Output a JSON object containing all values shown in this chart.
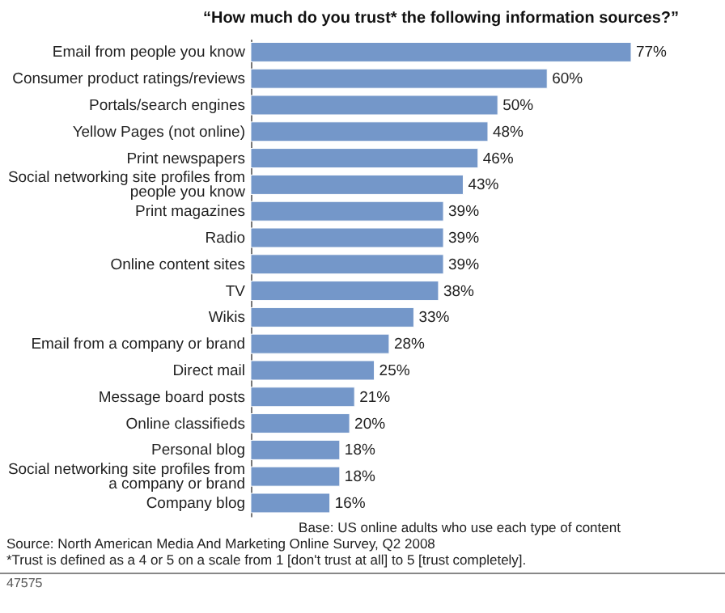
{
  "chart_data": {
    "type": "bar",
    "orientation": "horizontal",
    "title": "“How much do you trust* the following information sources?”",
    "categories": [
      "Email from people you know",
      "Consumer product ratings/reviews",
      "Portals/search engines",
      "Yellow Pages (not online)",
      "Print newspapers",
      "Social networking site profiles from\npeople you know",
      "Print magazines",
      "Radio",
      "Online content sites",
      "TV",
      "Wikis",
      "Email from a company or brand",
      "Direct mail",
      "Message board posts",
      "Online classifieds",
      "Personal blog",
      "Social networking site profiles from\na company or brand",
      "Company blog"
    ],
    "values": [
      77,
      60,
      50,
      48,
      46,
      43,
      39,
      39,
      39,
      38,
      33,
      28,
      25,
      21,
      20,
      18,
      18,
      16
    ],
    "value_labels": [
      "77%",
      "60%",
      "50%",
      "48%",
      "46%",
      "43%",
      "39%",
      "39%",
      "39%",
      "38%",
      "33%",
      "28%",
      "25%",
      "21%",
      "20%",
      "18%",
      "18%",
      "16%"
    ],
    "color": "#7497c9",
    "annotations": [
      "Base: US online adults who use each type of content",
      "Source: North American Media And Marketing Online Survey, Q2 2008",
      "*Trust is defined as a 4 or 5 on a scale from 1 [don't trust at all] to 5 [trust completely].",
      "47575"
    ]
  }
}
